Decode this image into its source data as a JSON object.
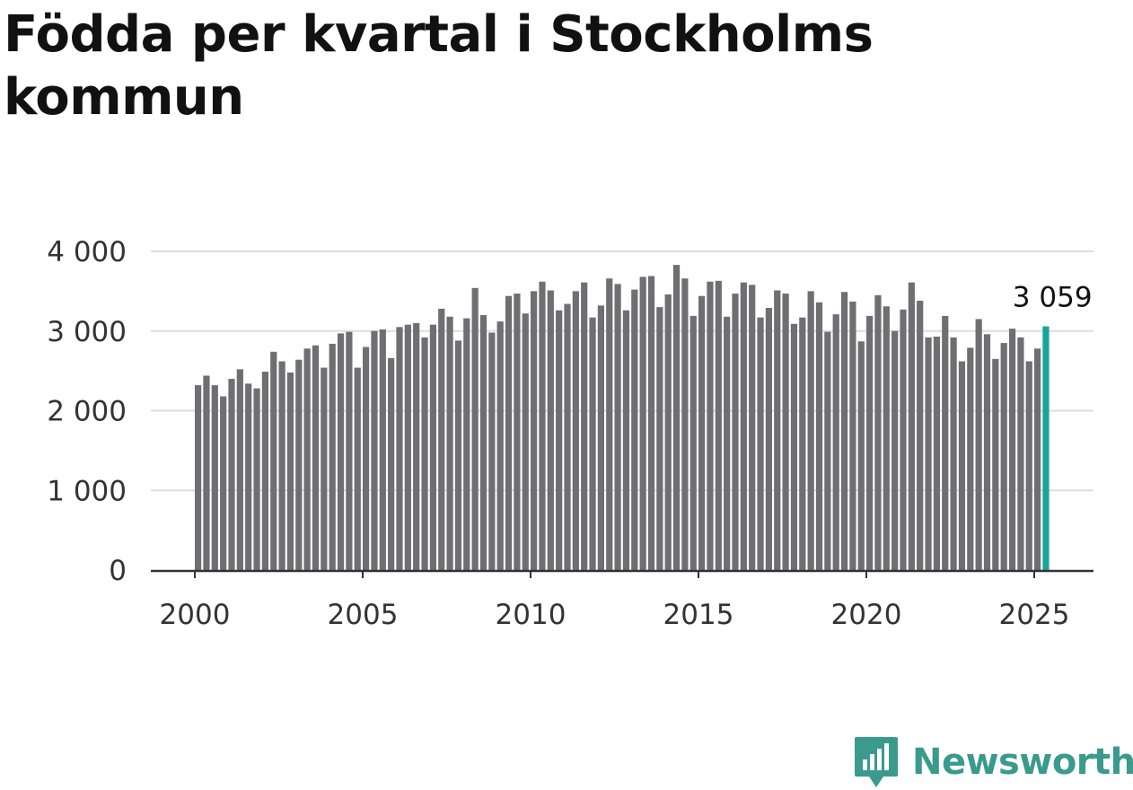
{
  "title": "Födda per kvartal i Stockholms kommun",
  "brand": {
    "name": "Newsworthy",
    "color": "#3a9a8e",
    "icon": "newsworthy-logo-icon"
  },
  "colors": {
    "bar": "#6e6e73",
    "highlight": "#1aa39a",
    "grid": "#dddddd",
    "axis": "#333333"
  },
  "chart_data": {
    "type": "bar",
    "title": "Födda per kvartal i Stockholms kommun",
    "xlabel": "",
    "ylabel": "",
    "ylim": [
      0,
      4000
    ],
    "yticks": [
      0,
      1000,
      2000,
      3000,
      4000
    ],
    "ytick_labels": [
      "0",
      "1 000",
      "2 000",
      "3 000",
      "4 000"
    ],
    "xticks": [
      2000,
      2005,
      2010,
      2015,
      2020,
      2025
    ],
    "xtick_labels": [
      "2000",
      "2005",
      "2010",
      "2015",
      "2020",
      "2025"
    ],
    "grid": true,
    "highlight_last": true,
    "last_value_label": "3 059",
    "categories": [
      "2000 Q1",
      "2000 Q2",
      "2000 Q3",
      "2000 Q4",
      "2001 Q1",
      "2001 Q2",
      "2001 Q3",
      "2001 Q4",
      "2002 Q1",
      "2002 Q2",
      "2002 Q3",
      "2002 Q4",
      "2003 Q1",
      "2003 Q2",
      "2003 Q3",
      "2003 Q4",
      "2004 Q1",
      "2004 Q2",
      "2004 Q3",
      "2004 Q4",
      "2005 Q1",
      "2005 Q2",
      "2005 Q3",
      "2005 Q4",
      "2006 Q1",
      "2006 Q2",
      "2006 Q3",
      "2006 Q4",
      "2007 Q1",
      "2007 Q2",
      "2007 Q3",
      "2007 Q4",
      "2008 Q1",
      "2008 Q2",
      "2008 Q3",
      "2008 Q4",
      "2009 Q1",
      "2009 Q2",
      "2009 Q3",
      "2009 Q4",
      "2010 Q1",
      "2010 Q2",
      "2010 Q3",
      "2010 Q4",
      "2011 Q1",
      "2011 Q2",
      "2011 Q3",
      "2011 Q4",
      "2012 Q1",
      "2012 Q2",
      "2012 Q3",
      "2012 Q4",
      "2013 Q1",
      "2013 Q2",
      "2013 Q3",
      "2013 Q4",
      "2014 Q1",
      "2014 Q2",
      "2014 Q3",
      "2014 Q4",
      "2015 Q1",
      "2015 Q2",
      "2015 Q3",
      "2015 Q4",
      "2016 Q1",
      "2016 Q2",
      "2016 Q3",
      "2016 Q4",
      "2017 Q1",
      "2017 Q2",
      "2017 Q3",
      "2017 Q4",
      "2018 Q1",
      "2018 Q2",
      "2018 Q3",
      "2018 Q4",
      "2019 Q1",
      "2019 Q2",
      "2019 Q3",
      "2019 Q4",
      "2020 Q1",
      "2020 Q2",
      "2020 Q3",
      "2020 Q4",
      "2021 Q1",
      "2021 Q2",
      "2021 Q3",
      "2021 Q4",
      "2022 Q1",
      "2022 Q2",
      "2022 Q3",
      "2022 Q4",
      "2023 Q1",
      "2023 Q2",
      "2023 Q3",
      "2023 Q4",
      "2024 Q1",
      "2024 Q2",
      "2024 Q3",
      "2024 Q4",
      "2025 Q1",
      "2025 Q2"
    ],
    "values": [
      2320,
      2440,
      2320,
      2180,
      2400,
      2520,
      2340,
      2280,
      2490,
      2740,
      2620,
      2480,
      2640,
      2780,
      2820,
      2540,
      2840,
      2970,
      2990,
      2540,
      2800,
      3000,
      3020,
      2660,
      3050,
      3080,
      3100,
      2920,
      3080,
      3280,
      3180,
      2880,
      3160,
      3540,
      3200,
      2980,
      3120,
      3440,
      3470,
      3220,
      3500,
      3620,
      3510,
      3260,
      3340,
      3500,
      3610,
      3170,
      3320,
      3660,
      3590,
      3260,
      3520,
      3680,
      3690,
      3300,
      3460,
      3830,
      3660,
      3190,
      3440,
      3620,
      3630,
      3180,
      3470,
      3610,
      3580,
      3170,
      3290,
      3510,
      3470,
      3090,
      3170,
      3500,
      3360,
      2990,
      3210,
      3490,
      3370,
      2870,
      3190,
      3450,
      3310,
      3000,
      3270,
      3610,
      3380,
      2920,
      2930,
      3190,
      2920,
      2620,
      2790,
      3150,
      2960,
      2650,
      2850,
      3030,
      2920,
      2620,
      2780,
      3059
    ]
  }
}
